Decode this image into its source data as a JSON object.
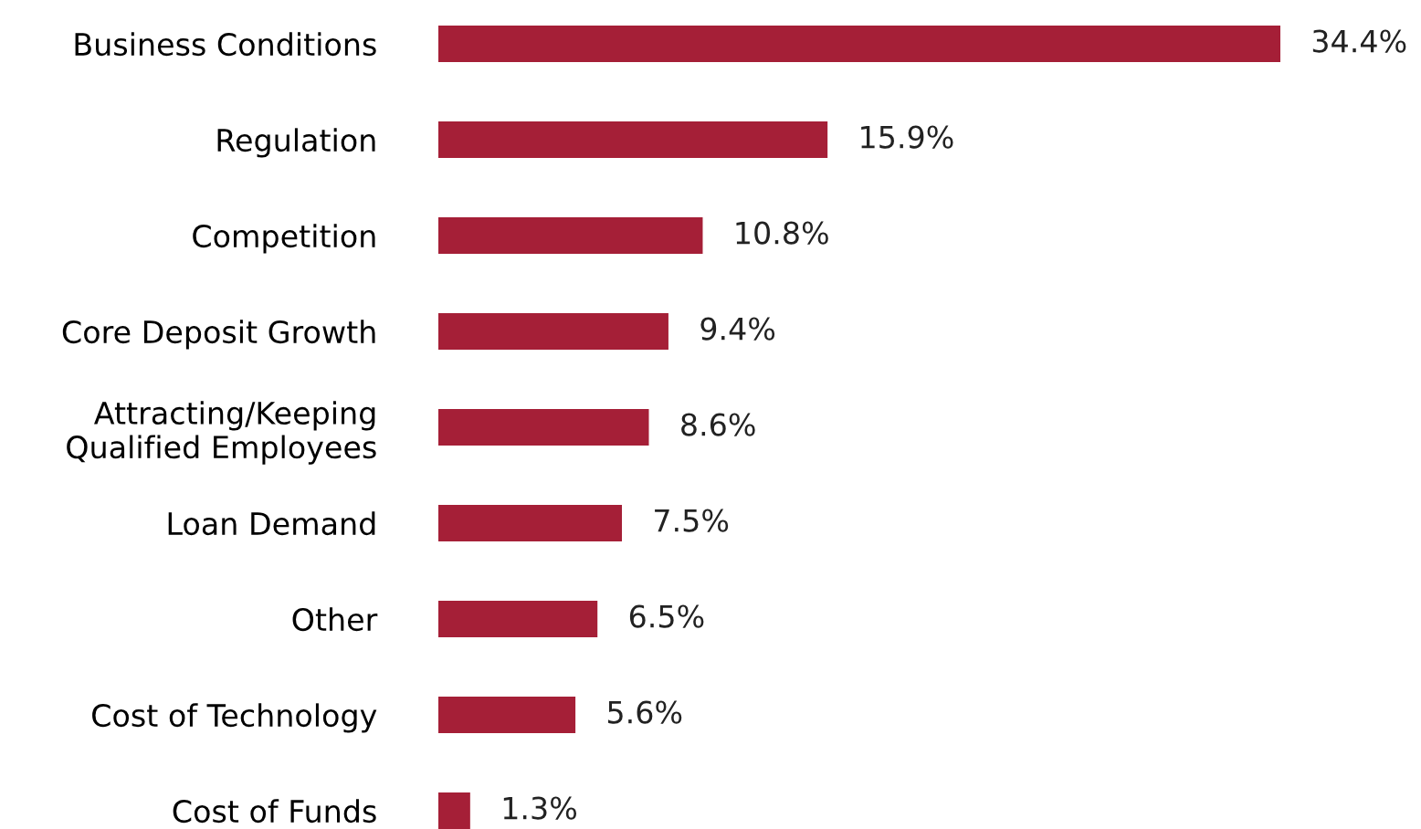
{
  "chart_data": {
    "type": "bar",
    "orientation": "horizontal",
    "categories": [
      "Business Conditions",
      "Regulation",
      "Competition",
      "Core Deposit Growth",
      "Attracting/Keeping\nQualified Employees",
      "Loan Demand",
      "Other",
      "Cost of Technology",
      "Cost of Funds"
    ],
    "values": [
      34.4,
      15.9,
      10.8,
      9.4,
      8.6,
      7.5,
      6.5,
      5.6,
      1.3
    ],
    "value_labels": [
      "34.4%",
      "15.9%",
      "10.8%",
      "9.4%",
      "8.6%",
      "7.5%",
      "6.5%",
      "5.6%",
      "1.3%"
    ],
    "color": "#a51f37",
    "grid": false,
    "legend": false
  }
}
